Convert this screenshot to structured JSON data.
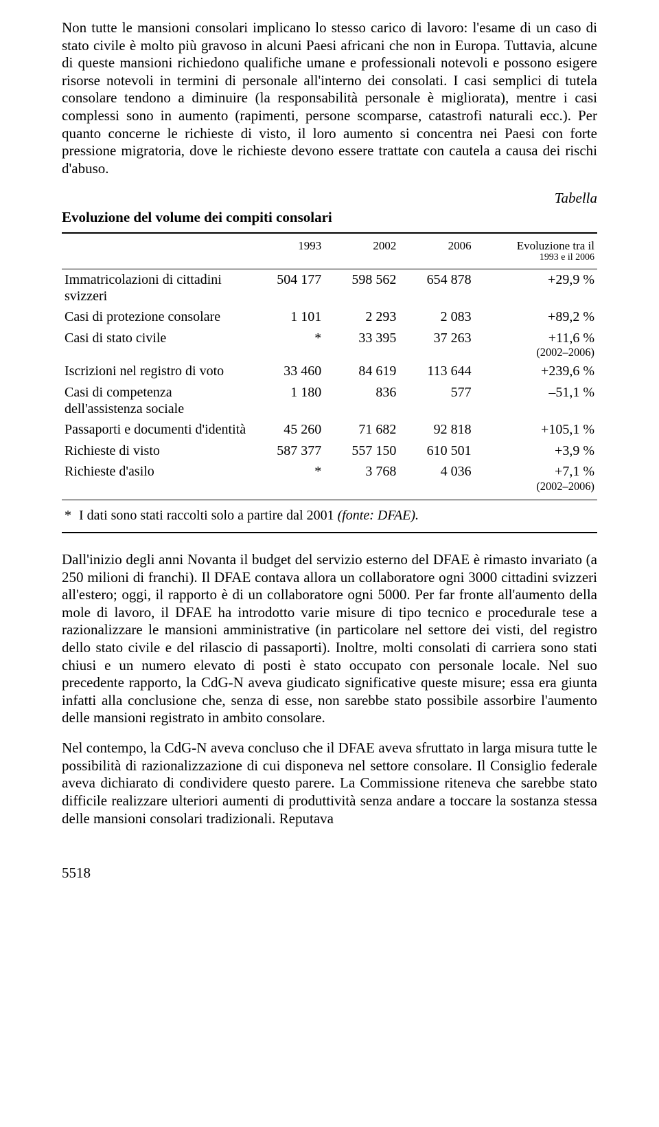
{
  "para1": "Non tutte le mansioni consolari implicano lo stesso carico di lavoro: l'esame di un caso di stato civile è molto più gravoso in alcuni Paesi africani che non in Europa. Tuttavia, alcune di queste mansioni richiedono qualifiche umane e professionali notevoli e possono esigere risorse notevoli in termini di personale all'interno dei consolati. I casi semplici di tutela consolare tendono a diminuire (la responsabilità personale è migliorata), mentre i casi complessi sono in aumento (rapimenti, persone scomparse, catastrofi naturali ecc.). Per quanto concerne le richieste di visto, il loro aumento si concentra nei Paesi con forte pressione migratoria, dove le richieste devono essere trattate con cautela a causa dei rischi d'abuso.",
  "tableLabel": "Tabella",
  "tableTitle": "Evoluzione del volume dei compiti consolari",
  "table": {
    "headers": [
      "",
      "1993",
      "2002",
      "2006",
      "Evoluzione tra il\n1993 e il 2006"
    ],
    "rows": [
      {
        "label": "Immatricolazioni di cittadini svizzeri",
        "c1": "504 177",
        "c2": "598 562",
        "c3": "654 878",
        "c4": "+29,9 %"
      },
      {
        "label": "Casi di protezione consolare",
        "c1": "1 101",
        "c2": "2 293",
        "c3": "2 083",
        "c4": "+89,2 %"
      },
      {
        "label": "Casi di stato civile",
        "c1": "*",
        "c2": "33 395",
        "c3": "37 263",
        "c4": "+11,6 %\n(2002–2006)"
      },
      {
        "label": "Iscrizioni nel registro di voto",
        "c1": "33 460",
        "c2": "84 619",
        "c3": "113 644",
        "c4": "+239,6 %"
      },
      {
        "label": "Casi di competenza dell'assistenza sociale",
        "c1": "1 180",
        "c2": "836",
        "c3": "577",
        "c4": "–51,1 %"
      },
      {
        "label": "Passaporti e documenti d'identità",
        "c1": "45 260",
        "c2": "71 682",
        "c3": "92 818",
        "c4": "+105,1 %"
      },
      {
        "label": "Richieste di visto",
        "c1": "587 377",
        "c2": "557 150",
        "c3": "610 501",
        "c4": "+3,9 %"
      },
      {
        "label": "Richieste d'asilo",
        "c1": "*",
        "c2": "3 768",
        "c3": "4 036",
        "c4": "+7,1 %\n(2002–2006)"
      }
    ],
    "footnote_ast": "*",
    "footnote_text": "I dati sono stati raccolti solo a partire dal 2001 ",
    "footnote_src": "(fonte: DFAE)."
  },
  "para2": "Dall'inizio degli anni Novanta il budget del servizio esterno del DFAE è rimasto invariato (a 250 milioni di franchi). Il DFAE contava allora un collaboratore ogni 3000 cittadini svizzeri all'estero; oggi, il rapporto è di un collaboratore ogni 5000. Per far fronte all'aumento della mole di lavoro, il DFAE ha introdotto varie misure di tipo tecnico e procedurale tese a razionalizzare le mansioni amministrative (in particolare nel settore dei visti, del registro dello stato civile e del rilascio di passaporti). Inoltre, molti consolati di carriera sono stati chiusi e un numero elevato di posti è stato occupato con personale locale. Nel suo precedente rapporto, la CdG-N aveva giudicato significative queste misure; essa era giunta infatti alla conclusione che, senza di esse, non sarebbe stato possibile assorbire l'aumento delle mansioni registrato in ambito consolare.",
  "para3": "Nel contempo, la CdG-N aveva concluso che il DFAE aveva sfruttato in larga misura tutte le possibilità di razionalizzazione di cui disponeva nel settore consolare. Il Consiglio federale aveva dichiarato di condividere questo parere. La Commissione riteneva che sarebbe stato difficile realizzare ulteriori aumenti di produttività senza andare a toccare la sostanza stessa delle mansioni consolari tradizionali. Reputava",
  "pageno": "5518"
}
